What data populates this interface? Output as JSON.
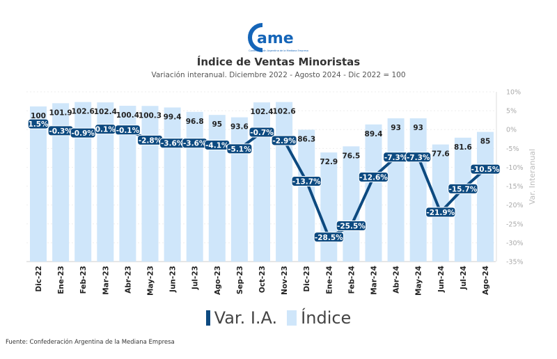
{
  "logo": {
    "text": "came",
    "tagline": "Confederación Argentina de la Mediana Empresa"
  },
  "chart_data": {
    "type": "bar+line",
    "title": "Índice de Ventas Minoristas",
    "subtitle": "Variación interanual. Diciembre 2022 - Agosto 2024 - Dic 2022 = 100",
    "categories": [
      "Dic-22",
      "Ene-23",
      "Feb-23",
      "Mar-23",
      "Abr-23",
      "May-23",
      "Jun-23",
      "Jul-23",
      "Ago-23",
      "Sep-23",
      "Oct-23",
      "Nov-23",
      "Dic-23",
      "Ene-24",
      "Feb-24",
      "Mar-24",
      "Abr-24",
      "May-24",
      "Jun-24",
      "Jul-24",
      "Ago-24"
    ],
    "series": [
      {
        "name": "Índice",
        "type": "bar",
        "color": "#cfe6fa",
        "values": [
          100,
          101.9,
          102.6,
          102.4,
          100.4,
          100.3,
          99.4,
          96.8,
          95,
          93.6,
          102.4,
          102.6,
          86.3,
          72.9,
          76.5,
          89.4,
          93,
          93,
          77.6,
          81.6,
          85
        ]
      },
      {
        "name": "Var. I.A.",
        "type": "line",
        "color": "#0d4a80",
        "axis": "right",
        "values": [
          1.5,
          -0.3,
          -0.9,
          0.1,
          -0.1,
          -2.8,
          -3.6,
          -3.6,
          -4.1,
          -5.1,
          -0.7,
          -2.9,
          -13.7,
          -28.5,
          -25.5,
          -12.6,
          -7.3,
          -7.3,
          -21.9,
          -15.7,
          -10.5
        ]
      }
    ],
    "line_labels": [
      "1.5%",
      "-0.3%",
      "-0.9%",
      "0.1%",
      "-0.1%",
      "-2.8%",
      "-3.6%",
      "-3.6%",
      "-4.1%",
      "-5.1%",
      "-0.7%",
      "-2.9%",
      "-13.7%",
      "-28.5%",
      "-25.5%",
      "-12.6%",
      "-7.3%",
      "-7.3%",
      "-21.9%",
      "-15.7%",
      "-10.5%"
    ],
    "y2label": "Var. Interanual",
    "y2lim": [
      -35,
      10
    ],
    "y2ticks": [
      "10%",
      "5%",
      "0%",
      "-5%",
      "-10%",
      "-15%",
      "-20%",
      "-25%",
      "-30%",
      "-35%"
    ],
    "y2tick_values": [
      10,
      5,
      0,
      -5,
      -10,
      -15,
      -20,
      -25,
      -30,
      -35
    ],
    "grid": true,
    "legend": "bottom-center"
  },
  "legend": {
    "line": "Var. I.A.",
    "bar": "Índice"
  },
  "source": "Fuente: Confederación Argentina de la Mediana Empresa"
}
